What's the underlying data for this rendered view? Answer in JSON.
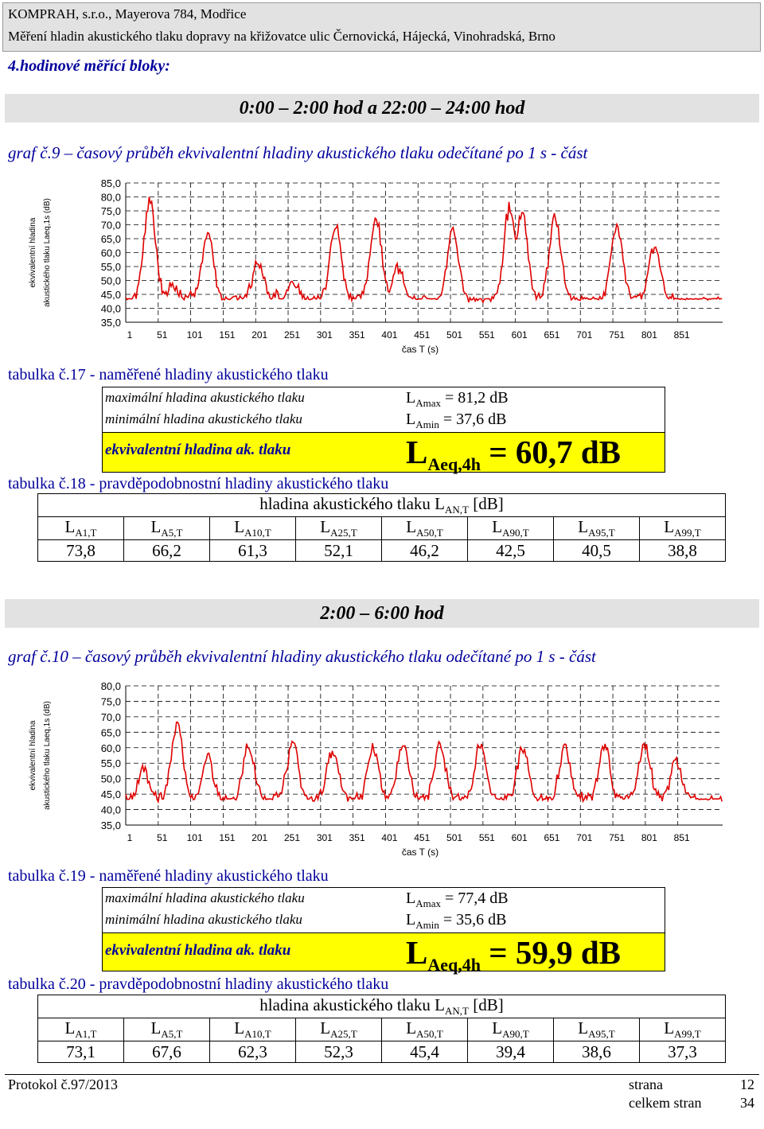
{
  "header": {
    "company": "KOMPRAH, s.r.o., Mayerova 784, Modřice",
    "title": "Měření hladin akustického tlaku dopravy na křižovatce ulic Černovická, Hájecká, Vinohradská, Brno"
  },
  "section_label": "4.hodinové měřící bloky:",
  "blocks": [
    {
      "period": "0:00 – 2:00 hod a 22:00 – 24:00 hod",
      "graf_caption": "graf č.9 – časový průběh ekvivalentní hladiny akustického tlaku odečítané po 1 s - část",
      "meas_caption": "tabulka č.17 - naměřené hladiny akustického tlaku",
      "max_label": "maximální hladina akustického tlaku",
      "min_label": "minimální hladina akustického tlaku",
      "eq_label": "ekvivalentní hladina ak. tlaku",
      "lamax_value": "= 81,2 dB",
      "lamin_value": "= 37,6 dB",
      "laeq_value": "= 60,7 dB",
      "prob_caption": "tabulka č.18 - pravděpodobnostní hladiny akustického tlaku",
      "prob_values": [
        "73,8",
        "66,2",
        "61,3",
        "52,1",
        "46,2",
        "42,5",
        "40,5",
        "38,8"
      ]
    },
    {
      "period": "2:00 – 6:00 hod",
      "graf_caption": "graf č.10 – časový průběh ekvivalentní hladiny akustického tlaku odečítané po 1 s - část",
      "meas_caption": "tabulka č.19 - naměřené hladiny akustického tlaku",
      "max_label": "maximální hladina akustického tlaku",
      "min_label": "minimální hladina akustického tlaku",
      "eq_label": "ekvivalentní hladina ak. tlaku",
      "lamax_value": "= 77,4 dB",
      "lamin_value": "= 35,6 dB",
      "laeq_value": "= 59,9 dB",
      "prob_caption": "tabulka č.20 - pravděpodobnostní hladiny akustického tlaku",
      "prob_values": [
        "73,1",
        "67,6",
        "62,3",
        "52,3",
        "45,4",
        "39,4",
        "38,6",
        "37,3"
      ]
    }
  ],
  "prob_table": {
    "header_text": "hladina akustického tlaku",
    "header_sub": "AN,T",
    "header_unit": "[dB]",
    "col_subs": [
      "A1,T",
      "A5,T",
      "A10,T",
      "A25,T",
      "A50,T",
      "A90,T",
      "A95,T",
      "A99,T"
    ]
  },
  "symbols": {
    "L": "L",
    "amax": "Amax",
    "amin": "Amin",
    "aeq": "Aeq,4h"
  },
  "footer": {
    "protocol": "Protokol č.97/2013",
    "page_label": "strana",
    "page_number": "12",
    "total_label": "celkem stran",
    "total_number": "34"
  },
  "colors": {
    "line": "#e00000",
    "accent_text": "#00009c",
    "highlight": "#ffff00"
  },
  "chart_data": [
    {
      "type": "line",
      "ylabel": "ekvivalentní hladina akustického tlaku Laeq,1s (dB)",
      "xlabel": "čas T (s)",
      "ylim": [
        35,
        85
      ],
      "y_ticks": [
        "85,0",
        "80,0",
        "75,0",
        "70,0",
        "65,0",
        "60,0",
        "55,0",
        "50,0",
        "45,0",
        "40,0",
        "35,0"
      ],
      "x_ticks": [
        "1",
        "51",
        "101",
        "151",
        "201",
        "251",
        "301",
        "351",
        "401",
        "451",
        "501",
        "551",
        "601",
        "651",
        "701",
        "751",
        "801",
        "851"
      ],
      "grid": true,
      "peaks": [
        {
          "x": 38,
          "y": 78
        },
        {
          "x": 72,
          "y": 48
        },
        {
          "x": 127,
          "y": 66
        },
        {
          "x": 205,
          "y": 56
        },
        {
          "x": 258,
          "y": 49
        },
        {
          "x": 324,
          "y": 69
        },
        {
          "x": 386,
          "y": 71
        },
        {
          "x": 420,
          "y": 54
        },
        {
          "x": 505,
          "y": 67
        },
        {
          "x": 592,
          "y": 75
        },
        {
          "x": 611,
          "y": 74
        },
        {
          "x": 662,
          "y": 72
        },
        {
          "x": 757,
          "y": 69
        },
        {
          "x": 815,
          "y": 62
        }
      ]
    },
    {
      "type": "line",
      "ylabel": "ekvivalentní hladina akustického tlaku Laeq,1s (dB)",
      "xlabel": "čas T (s)",
      "ylim": [
        35,
        80
      ],
      "y_ticks": [
        "80,0",
        "75,0",
        "70,0",
        "65,0",
        "60,0",
        "55,0",
        "50,0",
        "45,0",
        "40,0",
        "35,0"
      ],
      "x_ticks": [
        "1",
        "51",
        "101",
        "151",
        "201",
        "251",
        "301",
        "351",
        "401",
        "451",
        "501",
        "551",
        "601",
        "651",
        "701",
        "751",
        "801",
        "851"
      ],
      "grid": true,
      "peaks": [
        {
          "x": 28,
          "y": 52
        },
        {
          "x": 80,
          "y": 67
        },
        {
          "x": 127,
          "y": 56
        },
        {
          "x": 190,
          "y": 60
        },
        {
          "x": 258,
          "y": 61
        },
        {
          "x": 320,
          "y": 59
        },
        {
          "x": 382,
          "y": 59
        },
        {
          "x": 428,
          "y": 61
        },
        {
          "x": 485,
          "y": 60
        },
        {
          "x": 547,
          "y": 60
        },
        {
          "x": 612,
          "y": 59
        },
        {
          "x": 677,
          "y": 60
        },
        {
          "x": 738,
          "y": 60
        },
        {
          "x": 800,
          "y": 60
        },
        {
          "x": 848,
          "y": 55
        }
      ]
    }
  ]
}
